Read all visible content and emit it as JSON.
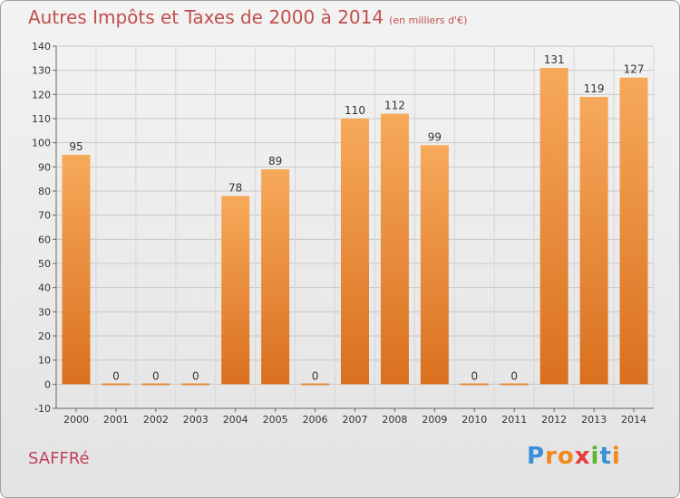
{
  "chart_data": {
    "type": "bar",
    "title": "Autres Impôts et Taxes de 2000 à 2014",
    "unit_label": "(en milliers d'€)",
    "categories": [
      "2000",
      "2001",
      "2002",
      "2003",
      "2004",
      "2005",
      "2006",
      "2007",
      "2008",
      "2009",
      "2010",
      "2011",
      "2012",
      "2013",
      "2014"
    ],
    "values": [
      95,
      0,
      0,
      0,
      78,
      89,
      0,
      110,
      112,
      99,
      0,
      0,
      131,
      119,
      127
    ],
    "value_labels": [
      "95",
      "0",
      "0",
      "0",
      "78",
      "89",
      "0",
      "110",
      "112",
      "99",
      "0",
      "0",
      "131",
      "119",
      "127"
    ],
    "ylim": [
      -10,
      140
    ],
    "yticks": [
      -10,
      0,
      10,
      20,
      30,
      40,
      50,
      60,
      70,
      80,
      90,
      100,
      110,
      120,
      130,
      140
    ],
    "grid": true,
    "bar_color_top": "#f7a95a",
    "bar_color_bottom": "#d9701f"
  },
  "footer": {
    "commune": "SAFFRé",
    "logo_letters": [
      "P",
      "r",
      "o",
      "x",
      "i",
      "t",
      "i"
    ],
    "logo_colors": [
      "#3a8fd8",
      "#f08a1c",
      "#f08a1c",
      "#e43b3b",
      "#5bb52f",
      "#3a8fd8",
      "#f08a1c"
    ]
  }
}
